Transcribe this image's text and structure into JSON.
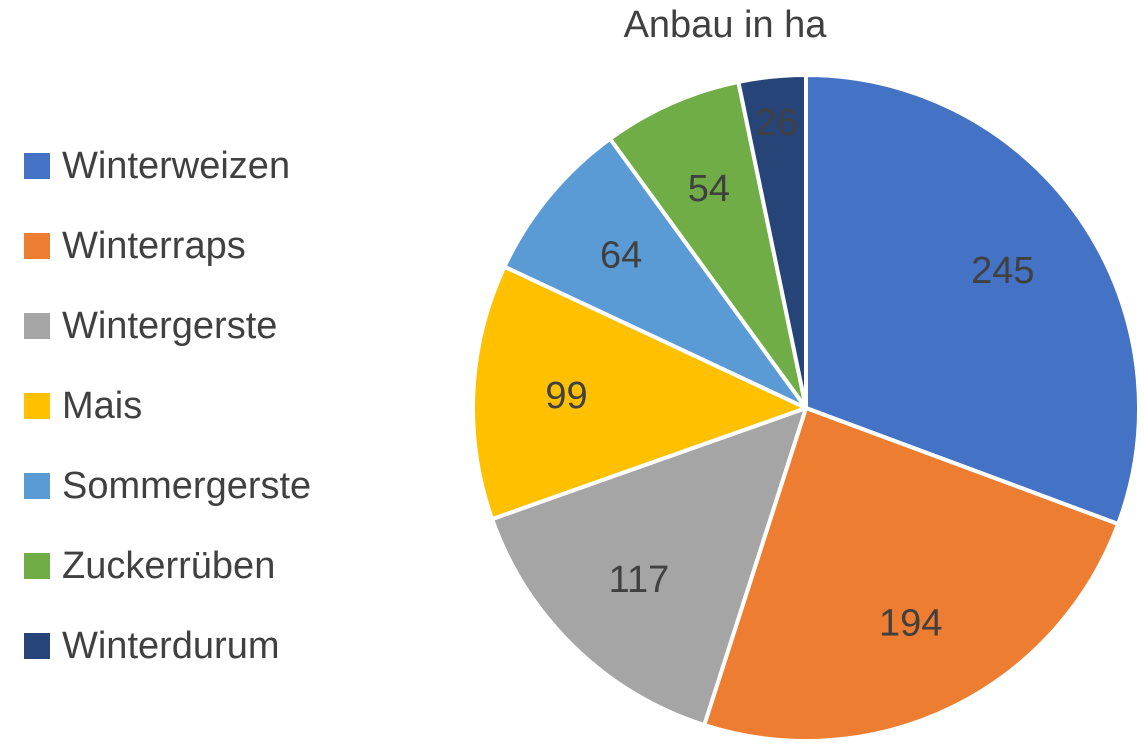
{
  "chart_data": {
    "type": "pie",
    "title": "Anbau in ha",
    "categories": [
      "Winterweizen",
      "Winterraps",
      "Wintergerste",
      "Mais",
      "Sommergerste",
      "Zuckerrüben",
      "Winterdurum"
    ],
    "values": [
      245,
      194,
      117,
      99,
      64,
      54,
      26
    ],
    "colors": [
      "#4472C4",
      "#ED7D31",
      "#A5A5A5",
      "#FFC000",
      "#5B9BD5",
      "#70AD47",
      "#264478"
    ],
    "legend_position": "left",
    "start_angle": "top",
    "direction": "clockwise",
    "data_labels": true
  }
}
